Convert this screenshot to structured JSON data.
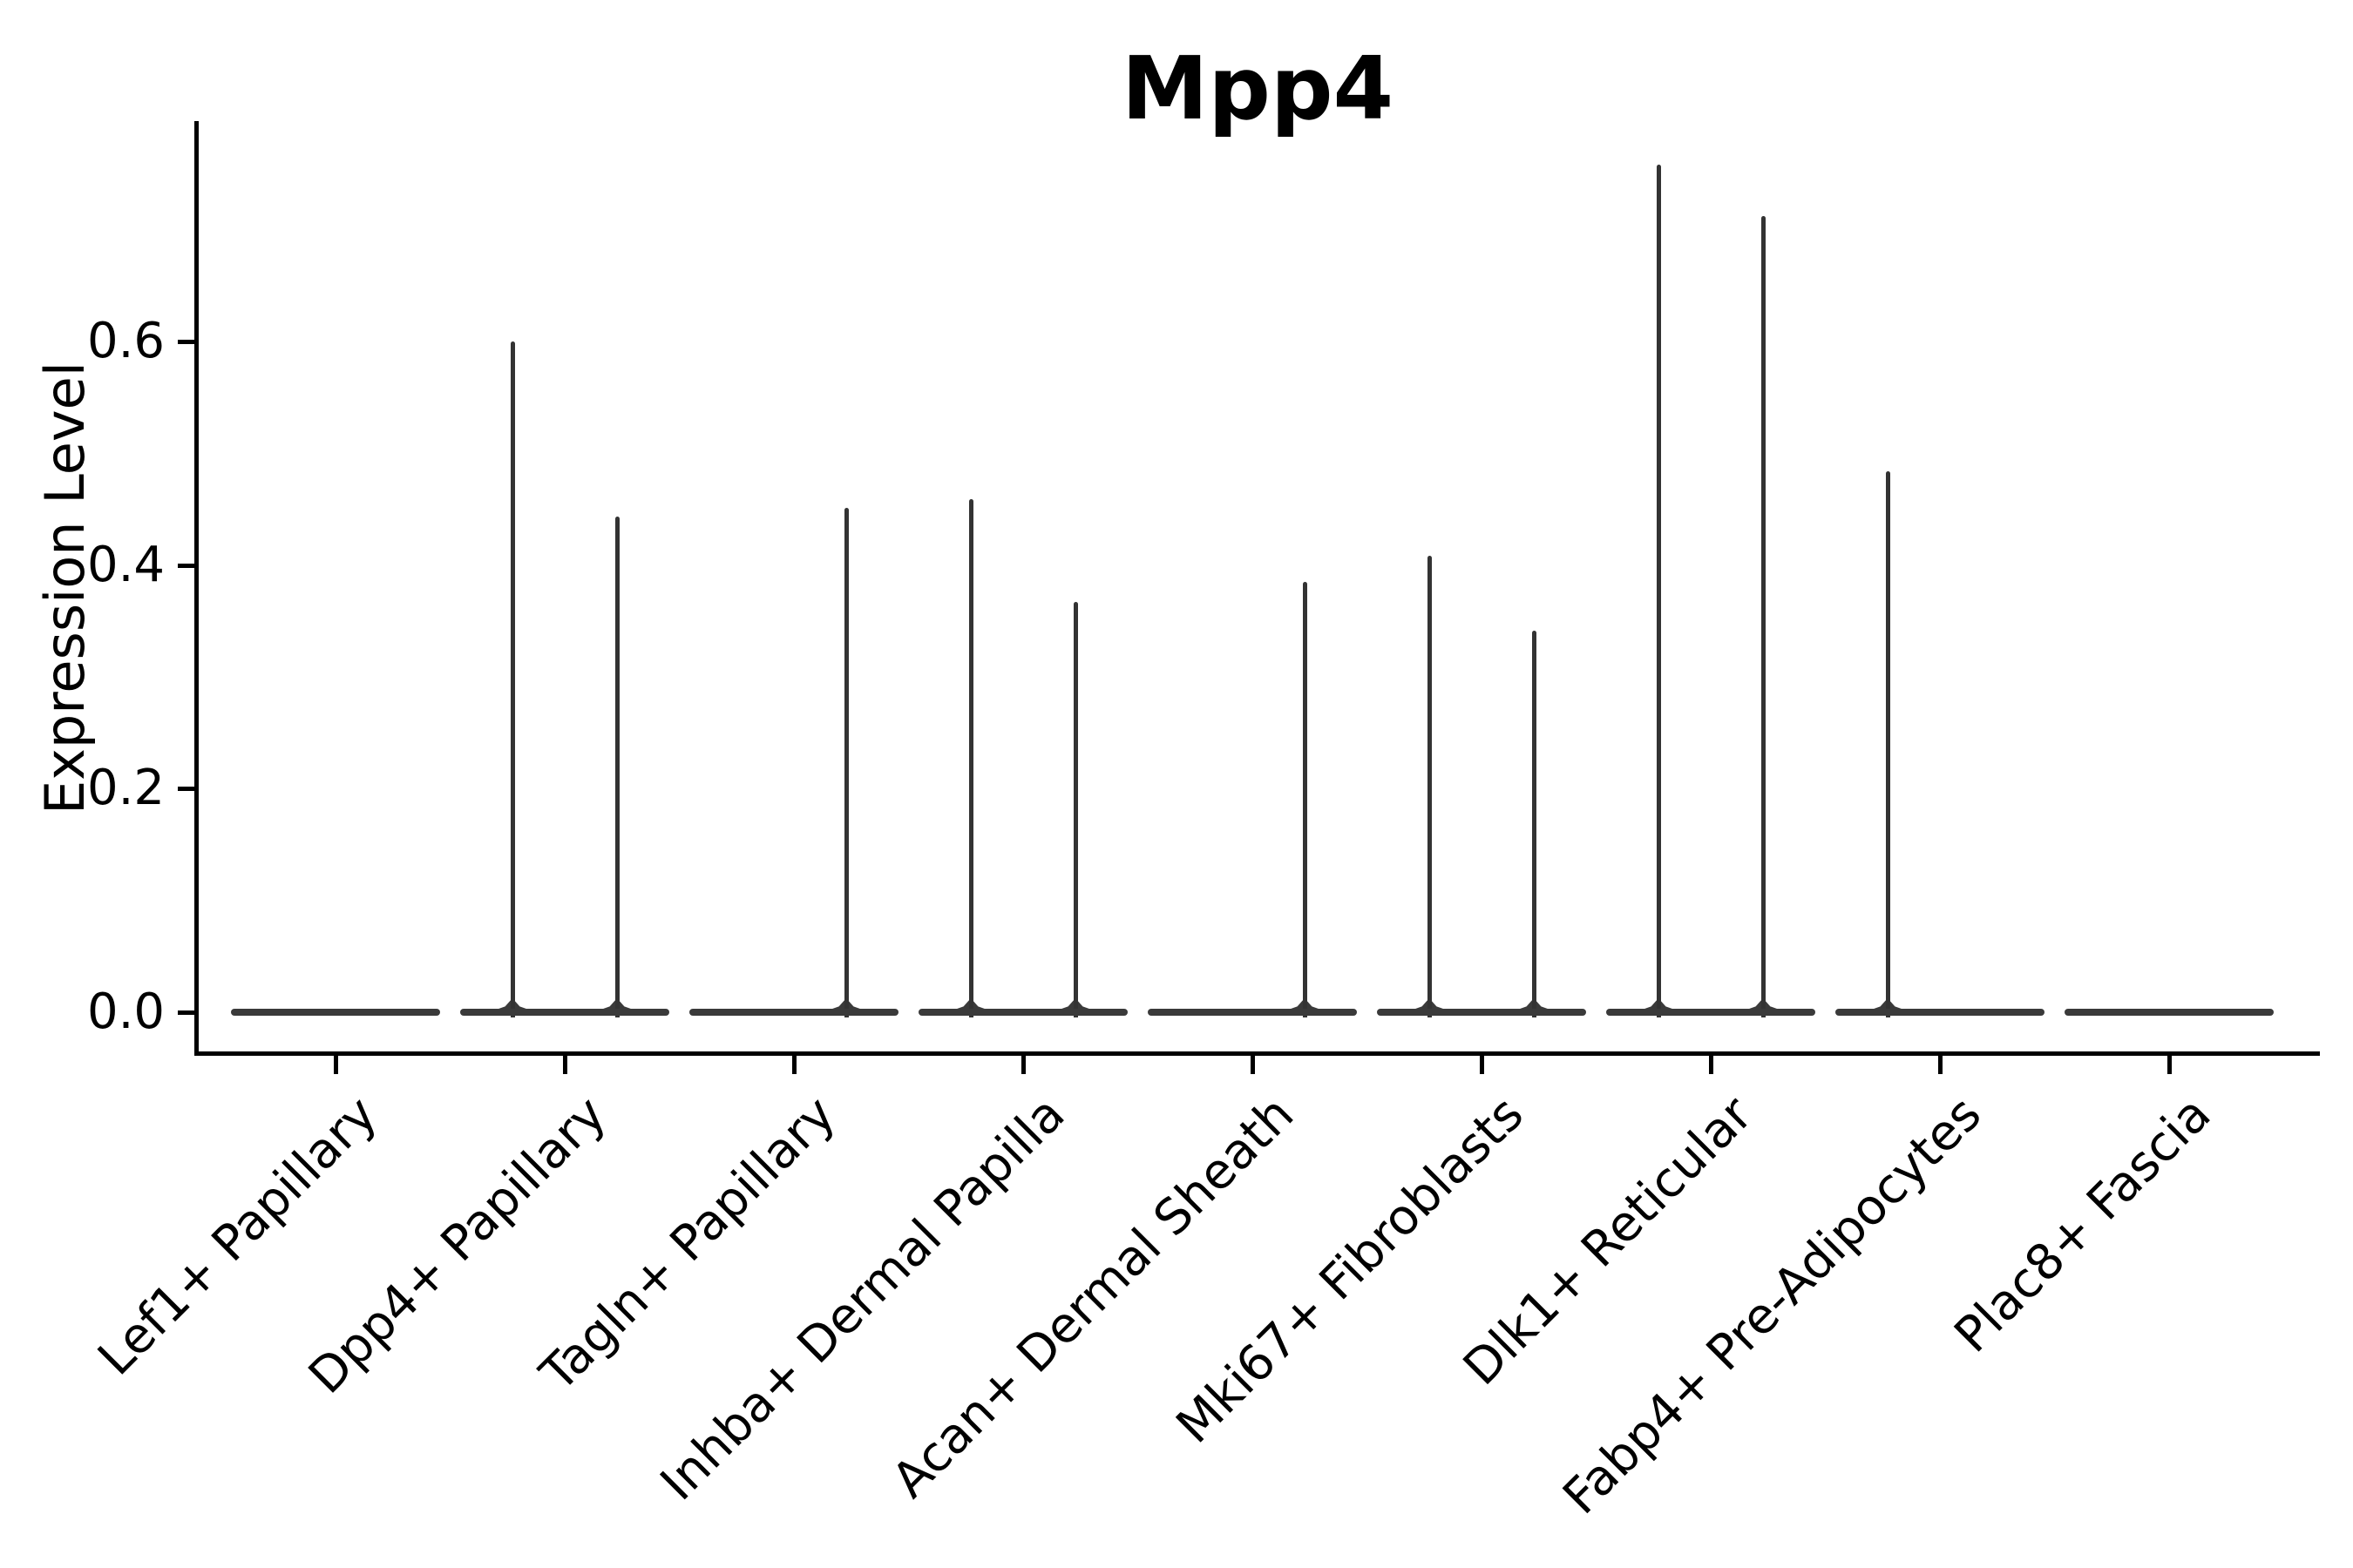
{
  "header": {
    "title": "Mpp4"
  },
  "chart_data": {
    "type": "violin",
    "title": "Mpp4",
    "xlabel": "",
    "ylabel": "Expression Level",
    "ylim": [
      -0.037,
      0.795
    ],
    "grid": false,
    "legend": "none",
    "yticks": [
      {
        "value": 0.0,
        "label": "0.0"
      },
      {
        "value": 0.2,
        "label": "0.2"
      },
      {
        "value": 0.4,
        "label": "0.4"
      },
      {
        "value": 0.6,
        "label": "0.6"
      }
    ],
    "baseline_value": 0.0,
    "description": "Split violin plot of Mpp4 expression; each category shows a flat density base at 0 with thin spikes marking maximum expression of the left/right split halves.",
    "categories": [
      {
        "name": "Lef1+ Papillary",
        "spikes": []
      },
      {
        "name": "Dpp4+ Papillary",
        "spikes": [
          {
            "side": "left",
            "max": 0.6
          },
          {
            "side": "right",
            "max": 0.443
          }
        ]
      },
      {
        "name": "Tagln+ Papillary",
        "spikes": [
          {
            "side": "right",
            "max": 0.451
          }
        ]
      },
      {
        "name": "Inhba+ Dermal Papilla",
        "spikes": [
          {
            "side": "left",
            "max": 0.459
          },
          {
            "side": "right",
            "max": 0.367
          }
        ]
      },
      {
        "name": "Acan+ Dermal Sheath",
        "spikes": [
          {
            "side": "right",
            "max": 0.385
          }
        ]
      },
      {
        "name": "Mki67+ Fibroblasts",
        "spikes": [
          {
            "side": "left",
            "max": 0.408
          },
          {
            "side": "right",
            "max": 0.341
          }
        ]
      },
      {
        "name": "Dlk1+ Reticular",
        "spikes": [
          {
            "side": "left",
            "max": 0.758
          },
          {
            "side": "right",
            "max": 0.712
          }
        ]
      },
      {
        "name": "Fabp4+ Pre-Adipocytes",
        "spikes": [
          {
            "side": "left",
            "max": 0.484
          }
        ]
      },
      {
        "name": "Plac8+ Fascia",
        "spikes": []
      }
    ],
    "colors": {
      "violin": "#333333",
      "axis": "#000000",
      "background": "#ffffff"
    }
  }
}
